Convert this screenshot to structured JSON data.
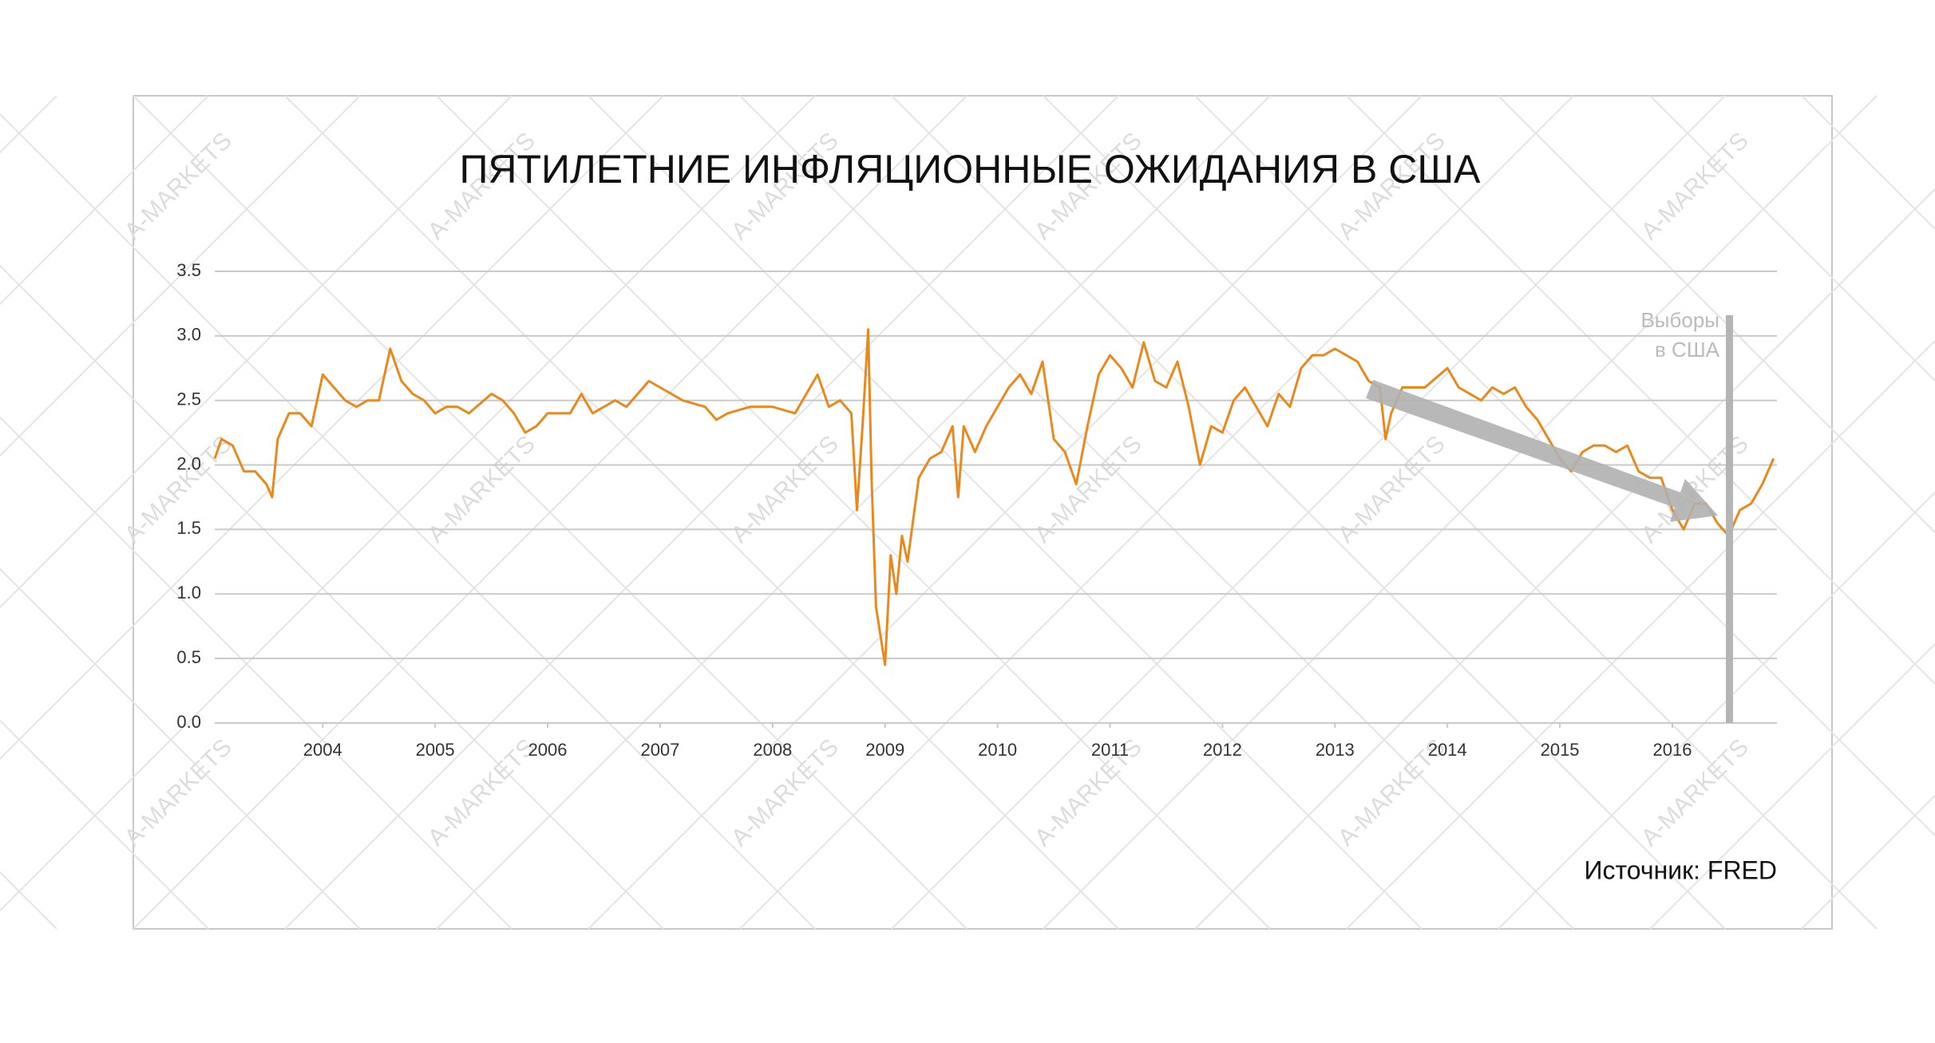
{
  "chart_data": {
    "type": "line",
    "title": "ПЯТИЛЕТНИЕ ИНФЛЯЦИОННЫЕ ОЖИДАНИЯ В США",
    "annotation": [
      "Выборы",
      "в США"
    ],
    "source": "Источник: FRED",
    "watermark": "A-MARKETS",
    "xlim": [
      2003.04,
      2016.93
    ],
    "xticks": [
      2004,
      2005,
      2006,
      2007,
      2008,
      2009,
      2010,
      2011,
      2012,
      2013,
      2014,
      2015,
      2016
    ],
    "ylim": [
      0,
      3.5
    ],
    "yticks": [
      {
        "value": 0,
        "label": "0.0"
      },
      0.5,
      {
        "value": 1,
        "label": "1.0"
      },
      1.5,
      {
        "value": 2,
        "label": "2.0"
      },
      2.5,
      {
        "value": 3,
        "label": "3.0"
      },
      3.5
    ],
    "grid": true,
    "series": [
      {
        "color": "#e8891d",
        "x": [
          2003.04,
          2003.1,
          2003.2,
          2003.3,
          2003.4,
          2003.5,
          2003.55,
          2003.6,
          2003.7,
          2003.8,
          2003.9,
          2004.0,
          2004.1,
          2004.2,
          2004.3,
          2004.4,
          2004.5,
          2004.6,
          2004.7,
          2004.8,
          2004.9,
          2005.0,
          2005.1,
          2005.2,
          2005.3,
          2005.5,
          2005.6,
          2005.7,
          2005.8,
          2005.9,
          2006.0,
          2006.2,
          2006.3,
          2006.4,
          2006.5,
          2006.6,
          2006.7,
          2006.8,
          2006.9,
          2007.0,
          2007.1,
          2007.2,
          2007.4,
          2007.5,
          2007.6,
          2007.8,
          2008.0,
          2008.2,
          2008.3,
          2008.4,
          2008.5,
          2008.6,
          2008.7,
          2008.75,
          2008.8,
          2008.85,
          2008.88,
          2008.92,
          2009.0,
          2009.05,
          2009.1,
          2009.15,
          2009.2,
          2009.3,
          2009.4,
          2009.5,
          2009.6,
          2009.65,
          2009.7,
          2009.8,
          2009.9,
          2010.0,
          2010.1,
          2010.2,
          2010.3,
          2010.4,
          2010.5,
          2010.6,
          2010.7,
          2010.8,
          2010.9,
          2011.0,
          2011.1,
          2011.2,
          2011.3,
          2011.4,
          2011.5,
          2011.6,
          2011.7,
          2011.8,
          2011.9,
          2012.0,
          2012.1,
          2012.2,
          2012.3,
          2012.4,
          2012.5,
          2012.6,
          2012.7,
          2012.8,
          2012.9,
          2013.0,
          2013.1,
          2013.2,
          2013.3,
          2013.4,
          2013.45,
          2013.5,
          2013.6,
          2013.7,
          2013.8,
          2014.0,
          2014.1,
          2014.2,
          2014.3,
          2014.4,
          2014.5,
          2014.6,
          2014.7,
          2014.8,
          2014.9,
          2015.0,
          2015.1,
          2015.2,
          2015.3,
          2015.4,
          2015.5,
          2015.6,
          2015.7,
          2015.8,
          2015.9,
          2016.0,
          2016.1,
          2016.2,
          2016.3,
          2016.4,
          2016.5,
          2016.6,
          2016.7,
          2016.8,
          2016.9
        ],
        "values": [
          2.05,
          2.2,
          2.15,
          1.95,
          1.95,
          1.85,
          1.75,
          2.2,
          2.4,
          2.4,
          2.3,
          2.7,
          2.6,
          2.5,
          2.45,
          2.5,
          2.5,
          2.9,
          2.65,
          2.55,
          2.5,
          2.4,
          2.45,
          2.45,
          2.4,
          2.55,
          2.5,
          2.4,
          2.25,
          2.3,
          2.4,
          2.4,
          2.55,
          2.4,
          2.45,
          2.5,
          2.45,
          2.55,
          2.65,
          2.6,
          2.55,
          2.5,
          2.45,
          2.35,
          2.4,
          2.45,
          2.45,
          2.4,
          2.55,
          2.7,
          2.45,
          2.5,
          2.4,
          1.65,
          2.3,
          3.05,
          1.9,
          0.9,
          0.45,
          1.3,
          1.0,
          1.45,
          1.25,
          1.9,
          2.05,
          2.1,
          2.3,
          1.75,
          2.3,
          2.1,
          2.3,
          2.45,
          2.6,
          2.7,
          2.55,
          2.8,
          2.2,
          2.1,
          1.85,
          2.3,
          2.7,
          2.85,
          2.75,
          2.6,
          2.95,
          2.65,
          2.6,
          2.8,
          2.45,
          2.0,
          2.3,
          2.25,
          2.5,
          2.6,
          2.45,
          2.3,
          2.55,
          2.45,
          2.75,
          2.85,
          2.85,
          2.9,
          2.85,
          2.8,
          2.65,
          2.6,
          2.2,
          2.4,
          2.6,
          2.6,
          2.6,
          2.75,
          2.6,
          2.55,
          2.5,
          2.6,
          2.55,
          2.6,
          2.45,
          2.35,
          2.2,
          2.05,
          1.95,
          2.1,
          2.15,
          2.15,
          2.1,
          2.15,
          1.95,
          1.9,
          1.9,
          1.65,
          1.5,
          1.7,
          1.7,
          1.55,
          1.45,
          1.65,
          1.7,
          1.85,
          2.05
        ]
      }
    ]
  }
}
